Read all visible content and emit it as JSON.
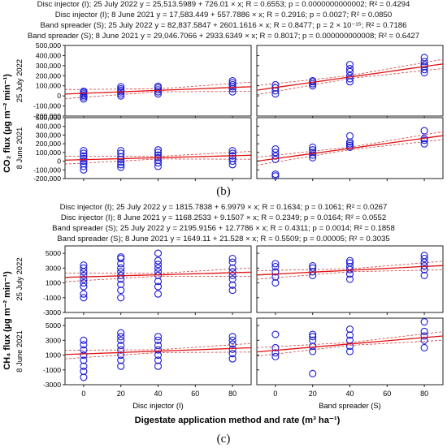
{
  "figure": {
    "b": {
      "label": "(b)",
      "equations": [
        "Disc injector (I); 25 July 2022    y = 25,513.5989 + 726.01 × x; R = 0.6553; p = 0.0000000000002; R² = 0.4294",
        "Disc injector (I); 8 June 2021    y = 17,583.449 + 557.7886 × x; R = 0.2916; p = 0.0027; R² = 0.0850",
        "Band spreader (S); 25 July 2022    y = 82,837.5847 + 2601.1616 × x; R = 0.8477; p = 2 × 10⁻¹⁵; R² = 0.7186",
        "Band spreader (S); 8 June 2021    y = 29,046.7066 + 2933.6349 × x; R = 0.8017; p = 0.000000000008; R² = 0.6427"
      ],
      "ylabel": "CO₂ flux (µg m⁻² min⁻¹)",
      "row_labels": [
        "25 July 2022",
        "8 June 2021"
      ],
      "yticks": [
        "500,000",
        "400,000",
        "300,000",
        "200,000",
        "100,000",
        "0",
        "-100,000",
        "-200,000"
      ]
    },
    "c": {
      "label": "(c)",
      "equations": [
        "Disc injector (I); 25 July 2022    y = 1815.7838 + 6.9979 × x; R = 0.1634; p = 0.1061; R² = 0.0267",
        "Disc injector (I); 8 June 2021    y = 1168.2533 + 9.1507 × x; R = 0.2349; p = 0.0164; R² = 0.0552",
        "Band spreader (S); 25 July 2022    y = 2195.9156 + 12.7786 × x; R = 0.4311; p = 0.0014; R² = 0.1858",
        "Band spreader (S); 8 June 2021    y = 1649.11 + 21.528 × x; R = 0.5509; p = 0.00005; R² = 0.3035"
      ],
      "ylabel": "CH₄ flux (µg m⁻² min⁻¹)",
      "row_labels": [
        "25 July 2022",
        "8 June 2021"
      ],
      "yticks": [
        "5000",
        "3000",
        "1000",
        "-1000",
        "-3000"
      ]
    },
    "xticks": [
      "0",
      "20",
      "40",
      "60",
      "80"
    ],
    "col_labels": [
      "Disc injector (I)",
      "Band spreader (S)"
    ],
    "xlabel": "Digestate application method and rate (m³ ha⁻¹)"
  },
  "colors": {
    "points": "#1a1ad6",
    "fit": "#e01010",
    "ci": "#d04040",
    "axis": "#222222"
  },
  "chart_data": [
    {
      "type": "scatter",
      "panel": "b",
      "ylim": [
        -200000,
        500000
      ],
      "xlim": [
        -10,
        90
      ],
      "panels": [
        {
          "row": "25 July 2022",
          "col": "Disc injector (I)",
          "fit": [
            25513.5989,
            726.01
          ],
          "points": [
            [
              0,
              -30000
            ],
            [
              0,
              -10000
            ],
            [
              0,
              5000
            ],
            [
              0,
              20000
            ],
            [
              0,
              35000
            ],
            [
              0,
              45000
            ],
            [
              20,
              0
            ],
            [
              20,
              20000
            ],
            [
              20,
              40000
            ],
            [
              20,
              55000
            ],
            [
              20,
              70000
            ],
            [
              20,
              90000
            ],
            [
              40,
              20000
            ],
            [
              40,
              40000
            ],
            [
              40,
              60000
            ],
            [
              40,
              80000
            ],
            [
              40,
              95000
            ],
            [
              80,
              40000
            ],
            [
              80,
              70000
            ],
            [
              80,
              90000
            ],
            [
              80,
              110000
            ],
            [
              80,
              130000
            ],
            [
              80,
              150000
            ]
          ]
        },
        {
          "row": "25 July 2022",
          "col": "Band spreader (S)",
          "fit": [
            82837.5847,
            2601.1616
          ],
          "points": [
            [
              0,
              20000
            ],
            [
              0,
              50000
            ],
            [
              0,
              80000
            ],
            [
              0,
              110000
            ],
            [
              20,
              100000
            ],
            [
              20,
              120000
            ],
            [
              20,
              140000
            ],
            [
              20,
              150000
            ],
            [
              40,
              140000
            ],
            [
              40,
              170000
            ],
            [
              40,
              200000
            ],
            [
              40,
              240000
            ],
            [
              40,
              270000
            ],
            [
              40,
              310000
            ],
            [
              80,
              230000
            ],
            [
              80,
              260000
            ],
            [
              80,
              290000
            ],
            [
              80,
              310000
            ],
            [
              80,
              340000
            ],
            [
              80,
              380000
            ]
          ]
        },
        {
          "row": "8 June 2021",
          "col": "Disc injector (I)",
          "fit": [
            17583.449,
            557.7886
          ],
          "points": [
            [
              0,
              -100000
            ],
            [
              0,
              -60000
            ],
            [
              0,
              -30000
            ],
            [
              0,
              0
            ],
            [
              0,
              30000
            ],
            [
              0,
              60000
            ],
            [
              0,
              90000
            ],
            [
              0,
              120000
            ],
            [
              20,
              -70000
            ],
            [
              20,
              -40000
            ],
            [
              20,
              -10000
            ],
            [
              20,
              20000
            ],
            [
              20,
              50000
            ],
            [
              20,
              90000
            ],
            [
              20,
              120000
            ],
            [
              40,
              -60000
            ],
            [
              40,
              -20000
            ],
            [
              40,
              10000
            ],
            [
              40,
              40000
            ],
            [
              40,
              70000
            ],
            [
              40,
              100000
            ],
            [
              40,
              130000
            ],
            [
              80,
              -40000
            ],
            [
              80,
              0
            ],
            [
              80,
              30000
            ],
            [
              80,
              60000
            ],
            [
              80,
              90000
            ],
            [
              80,
              120000
            ]
          ]
        },
        {
          "row": "8 June 2021",
          "col": "Band spreader (S)",
          "fit": [
            29046.7066,
            2933.6349
          ],
          "points": [
            [
              0,
              -170000
            ],
            [
              0,
              -150000
            ],
            [
              0,
              20000
            ],
            [
              0,
              60000
            ],
            [
              0,
              100000
            ],
            [
              0,
              140000
            ],
            [
              20,
              40000
            ],
            [
              20,
              70000
            ],
            [
              20,
              100000
            ],
            [
              20,
              130000
            ],
            [
              20,
              160000
            ],
            [
              40,
              160000
            ],
            [
              40,
              180000
            ],
            [
              40,
              200000
            ],
            [
              40,
              220000
            ],
            [
              40,
              290000
            ],
            [
              80,
              200000
            ],
            [
              80,
              240000
            ],
            [
              80,
              260000
            ],
            [
              80,
              350000
            ]
          ]
        }
      ]
    },
    {
      "type": "scatter",
      "panel": "c",
      "ylim": [
        -3000,
        6000
      ],
      "xlim": [
        -10,
        90
      ],
      "panels": [
        {
          "row": "25 July 2022",
          "col": "Disc injector (I)",
          "fit": [
            1815.7838,
            6.9979
          ],
          "points": [
            [
              0,
              -1000
            ],
            [
              0,
              -500
            ],
            [
              0,
              500
            ],
            [
              0,
              1000
            ],
            [
              0,
              1500
            ],
            [
              0,
              2000
            ],
            [
              0,
              2500
            ],
            [
              0,
              3000
            ],
            [
              0,
              3400
            ],
            [
              20,
              -1000
            ],
            [
              20,
              0
            ],
            [
              20,
              800
            ],
            [
              20,
              1500
            ],
            [
              20,
              2000
            ],
            [
              20,
              2500
            ],
            [
              20,
              3000
            ],
            [
              20,
              3600
            ],
            [
              20,
              4300
            ],
            [
              20,
              4500
            ],
            [
              40,
              -500
            ],
            [
              40,
              500
            ],
            [
              40,
              1200
            ],
            [
              40,
              2000
            ],
            [
              40,
              2500
            ],
            [
              40,
              3000
            ],
            [
              40,
              3500
            ],
            [
              40,
              4000
            ],
            [
              40,
              5000
            ],
            [
              80,
              0
            ],
            [
              80,
              700
            ],
            [
              80,
              1500
            ],
            [
              80,
              2000
            ],
            [
              80,
              2500
            ],
            [
              80,
              3000
            ],
            [
              80,
              3800
            ],
            [
              80,
              4300
            ]
          ]
        },
        {
          "row": "25 July 2022",
          "col": "Band spreader (S)",
          "fit": [
            2195.9156,
            12.7786
          ],
          "points": [
            [
              0,
              1000
            ],
            [
              0,
              1800
            ],
            [
              0,
              2500
            ],
            [
              0,
              3200
            ],
            [
              0,
              3600
            ],
            [
              20,
              2000
            ],
            [
              20,
              2500
            ],
            [
              20,
              3000
            ],
            [
              20,
              3300
            ],
            [
              40,
              1500
            ],
            [
              40,
              2200
            ],
            [
              40,
              2800
            ],
            [
              40,
              3200
            ],
            [
              40,
              3700
            ],
            [
              40,
              4000
            ],
            [
              80,
              2000
            ],
            [
              80,
              2800
            ],
            [
              80,
              3300
            ],
            [
              80,
              3800
            ],
            [
              80,
              4300
            ],
            [
              80,
              4700
            ]
          ]
        },
        {
          "row": "8 June 2021",
          "col": "Disc injector (I)",
          "fit": [
            1168.2533,
            9.1507
          ],
          "points": [
            [
              0,
              -2000
            ],
            [
              0,
              -1200
            ],
            [
              0,
              -500
            ],
            [
              0,
              300
            ],
            [
              0,
              1000
            ],
            [
              0,
              1700
            ],
            [
              0,
              2400
            ],
            [
              0,
              3000
            ],
            [
              20,
              -500
            ],
            [
              20,
              300
            ],
            [
              20,
              1000
            ],
            [
              20,
              1700
            ],
            [
              20,
              2300
            ],
            [
              20,
              3000
            ],
            [
              20,
              3500
            ],
            [
              20,
              4000
            ],
            [
              40,
              -500
            ],
            [
              40,
              300
            ],
            [
              40,
              1000
            ],
            [
              40,
              1700
            ],
            [
              40,
              2300
            ],
            [
              40,
              3000
            ],
            [
              40,
              3500
            ],
            [
              80,
              500
            ],
            [
              80,
              1200
            ],
            [
              80,
              1800
            ],
            [
              80,
              2500
            ],
            [
              80,
              3000
            ],
            [
              80,
              3500
            ]
          ]
        },
        {
          "row": "8 June 2021",
          "col": "Band spreader (S)",
          "fit": [
            1649.11,
            21.528
          ],
          "points": [
            [
              0,
              800
            ],
            [
              0,
              1300
            ],
            [
              0,
              2000
            ],
            [
              0,
              3800
            ],
            [
              20,
              -1500
            ],
            [
              20,
              1500
            ],
            [
              20,
              2200
            ],
            [
              20,
              3000
            ],
            [
              20,
              3500
            ],
            [
              20,
              3800
            ],
            [
              40,
              1500
            ],
            [
              40,
              2200
            ],
            [
              40,
              3000
            ],
            [
              40,
              3700
            ],
            [
              40,
              4500
            ],
            [
              80,
              2000
            ],
            [
              80,
              3000
            ],
            [
              80,
              3600
            ],
            [
              80,
              4200
            ],
            [
              80,
              5500
            ]
          ]
        }
      ]
    }
  ]
}
